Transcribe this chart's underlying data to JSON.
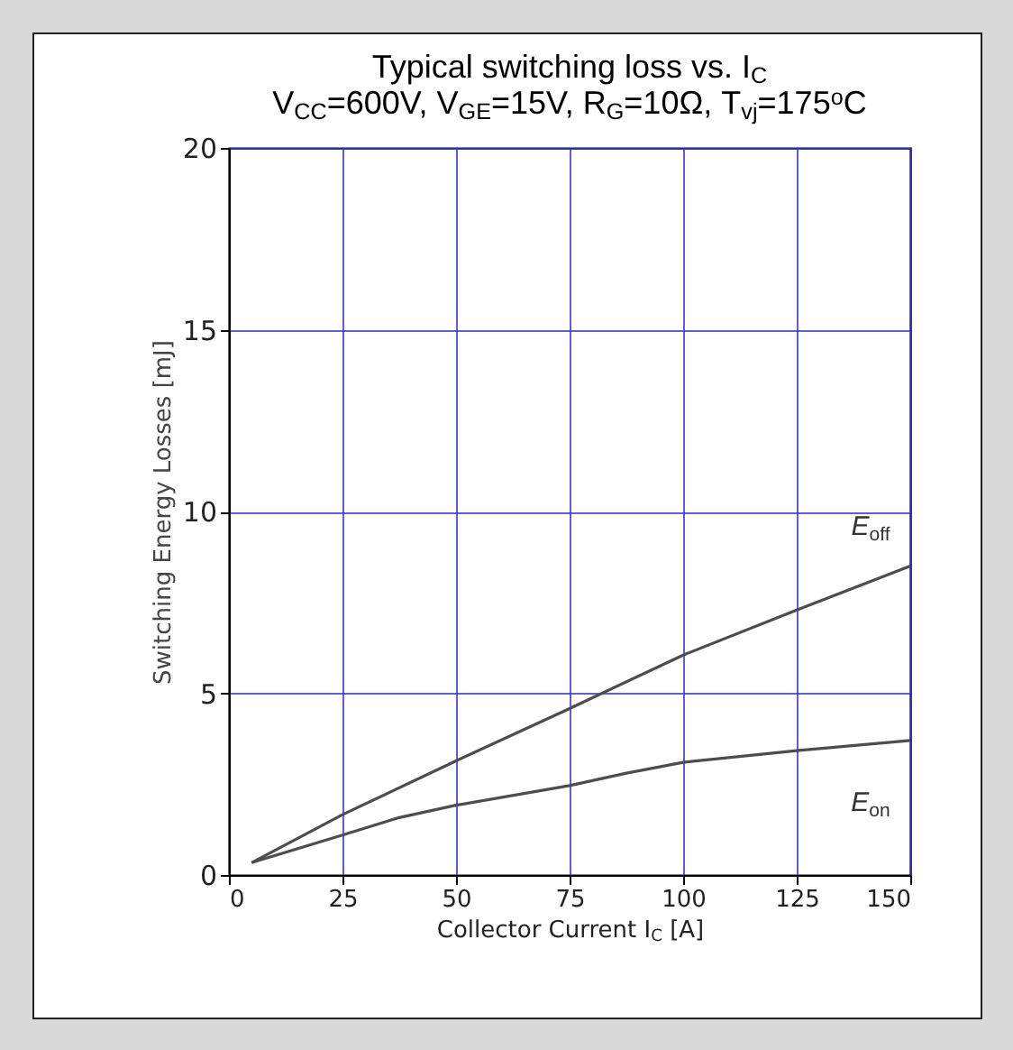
{
  "chart_data": {
    "type": "line",
    "title": "Typical switching loss vs. I$_{C}$",
    "subtitle": "V$_{CC}$=600V, V$_{GE}$=15V, R$_{G}$=10Ω, T$_{vj}$=175$^{o}$C",
    "xlabel": "Collector Current I$_{C}$ [A]",
    "ylabel": "Switching Energy Losses [mJ]",
    "series": [
      {
        "name": "E$_{off}$",
        "color": "#4d4d4d",
        "x": [
          5,
          25,
          50,
          75,
          100,
          125,
          150
        ],
        "values": [
          0.34,
          1.66,
          3.14,
          4.58,
          6.05,
          7.29,
          8.5
        ]
      },
      {
        "name": "E$_{on}$",
        "color": "#4d4d4d",
        "x": [
          5,
          25,
          37.5,
          50,
          75,
          87.5,
          100,
          125,
          150
        ],
        "values": [
          0.34,
          1.1,
          1.58,
          1.92,
          2.46,
          2.8,
          3.1,
          3.42,
          3.7
        ]
      }
    ],
    "xlim": [
      0,
      150
    ],
    "xticks": [
      0,
      25,
      50,
      75,
      100,
      125,
      150
    ],
    "ylim": [
      0,
      20
    ],
    "yticks": [
      0,
      5,
      10,
      15,
      20
    ],
    "grid": true,
    "legend": false,
    "marker": "none",
    "line_style": "solid"
  }
}
